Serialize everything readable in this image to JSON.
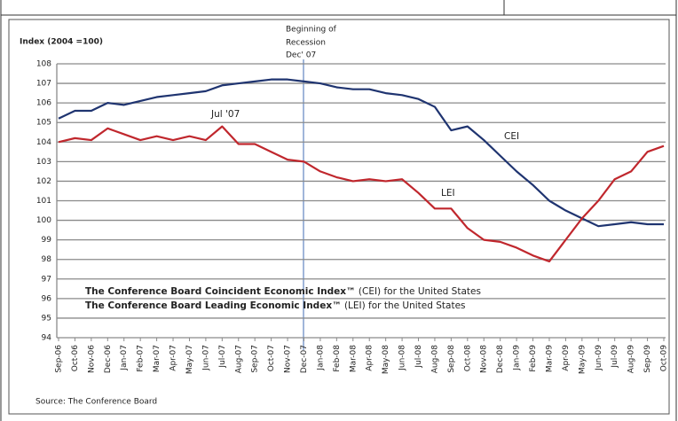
{
  "chart_data": {
    "type": "line",
    "y_label": "Index (2004 =100)",
    "recession_label": [
      "Beginning of",
      "Recession",
      "Dec' 07"
    ],
    "annotations": [
      "Jul '07",
      "CEI",
      "LEI"
    ],
    "notes": [
      {
        "bold": "The Conference Board Coincident Economic Index™",
        "text": " (CEI) for the United States"
      },
      {
        "bold": "The Conference Board Leading Economic Index™",
        "text": " (LEI) for the United  States"
      }
    ],
    "source": "Source: The Conference Board",
    "categories": [
      "Sep-06",
      "Oct-06",
      "Nov-06",
      "Dec-06",
      "Jan-07",
      "Feb-07",
      "Mar-07",
      "Apr-07",
      "May-07",
      "Jun-07",
      "Jul-07",
      "Aug-07",
      "Sep-07",
      "Oct-07",
      "Nov-07",
      "Dec-07",
      "Jan-08",
      "Feb-08",
      "Mar-08",
      "Apr-08",
      "May-08",
      "Jun-08",
      "Jul-08",
      "Aug-08",
      "Sep-08",
      "Oct-08",
      "Nov-08",
      "Dec-08",
      "Jan-09",
      "Feb-09",
      "Mar-09",
      "Apr-09",
      "May-09",
      "Jun-09",
      "Jul-09",
      "Aug-09",
      "Sep-09",
      "Oct-09"
    ],
    "series": [
      {
        "name": "CEI",
        "color": "#1f3470",
        "values": [
          105.2,
          105.6,
          105.6,
          106.0,
          105.9,
          106.1,
          106.3,
          106.4,
          106.5,
          106.6,
          106.9,
          107.0,
          107.1,
          107.2,
          107.2,
          107.1,
          107.0,
          106.8,
          106.7,
          106.7,
          106.5,
          106.4,
          106.2,
          105.8,
          104.6,
          104.8,
          104.1,
          103.3,
          102.5,
          101.8,
          101.0,
          100.5,
          100.1,
          99.7,
          99.8,
          99.9,
          99.8,
          99.8
        ]
      },
      {
        "name": "LEI",
        "color": "#c0272d",
        "values": [
          104.0,
          104.2,
          104.1,
          104.7,
          104.4,
          104.1,
          104.3,
          104.1,
          104.3,
          104.1,
          104.8,
          103.9,
          103.9,
          103.5,
          103.1,
          103.0,
          102.5,
          102.2,
          102.0,
          102.1,
          102.0,
          102.1,
          101.4,
          100.6,
          100.6,
          99.6,
          99.0,
          98.9,
          98.6,
          98.2,
          97.9,
          99.0,
          100.1,
          101.0,
          102.1,
          102.5,
          103.5,
          103.8
        ]
      }
    ],
    "ylim": [
      94,
      108
    ],
    "yticks": [
      94,
      95,
      96,
      97,
      98,
      99,
      100,
      101,
      102,
      103,
      104,
      105,
      106,
      107,
      108
    ],
    "grid": true
  }
}
